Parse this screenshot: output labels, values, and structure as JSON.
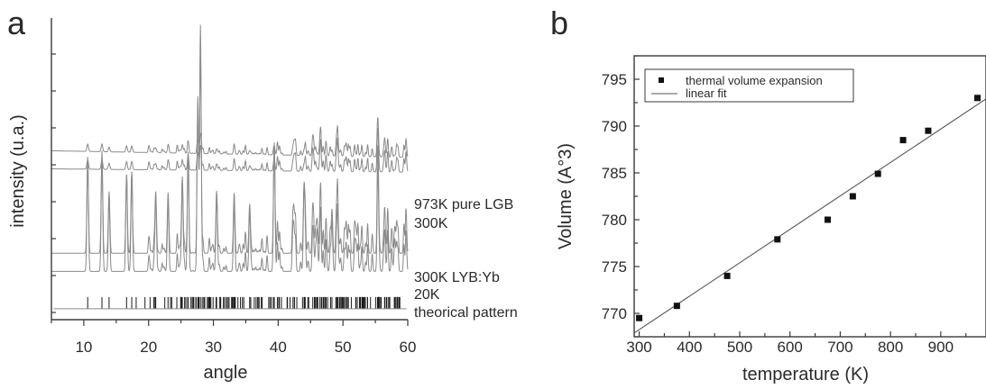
{
  "chart_data": [
    {
      "panel": "a",
      "type": "line",
      "xlabel": "angle",
      "ylabel": "intensity (u.a.)",
      "xlim": [
        5,
        60
      ],
      "xticks": [
        10,
        20,
        30,
        40,
        50,
        60
      ],
      "y_tick_labels_shown": false,
      "trace_labels": [
        {
          "name": "973K  pure LGB",
          "baseline": 0.56
        },
        {
          "name": "300K",
          "baseline": 0.5
        },
        {
          "name": "300K LYB:Yb",
          "baseline": 0.22
        },
        {
          "name": "20K",
          "baseline": 0.16
        },
        {
          "name": "theorical pattern",
          "baseline": 0.075
        }
      ],
      "major_peaks_deg": [
        {
          "x": 10.6,
          "h": 0.38
        },
        {
          "x": 12.8,
          "h": 0.4
        },
        {
          "x": 13.9,
          "h": 0.25
        },
        {
          "x": 16.6,
          "h": 0.32
        },
        {
          "x": 17.4,
          "h": 0.33
        },
        {
          "x": 21.1,
          "h": 0.25
        },
        {
          "x": 23.0,
          "h": 0.2
        },
        {
          "x": 25.2,
          "h": 0.28
        },
        {
          "x": 26.1,
          "h": 0.35
        },
        {
          "x": 27.6,
          "h": 0.55
        },
        {
          "x": 28.0,
          "h": 0.78
        },
        {
          "x": 30.5,
          "h": 0.25
        },
        {
          "x": 33.2,
          "h": 0.18
        },
        {
          "x": 35.6,
          "h": 0.2
        },
        {
          "x": 39.4,
          "h": 0.42
        },
        {
          "x": 42.3,
          "h": 0.1
        },
        {
          "x": 44.0,
          "h": 0.28
        },
        {
          "x": 46.0,
          "h": 0.14
        },
        {
          "x": 48.3,
          "h": 0.15
        },
        {
          "x": 52.0,
          "h": 0.1
        },
        {
          "x": 55.5,
          "h": 0.09
        },
        {
          "x": 58.0,
          "h": 0.11
        }
      ]
    },
    {
      "panel": "b",
      "type": "scatter",
      "xlabel": "temperature (K)",
      "ylabel": "Volume (A°3)",
      "xlim": [
        290,
        990
      ],
      "ylim": [
        767.5,
        797.5
      ],
      "xticks": [
        300,
        400,
        500,
        600,
        700,
        800,
        900
      ],
      "yticks": [
        770,
        775,
        780,
        785,
        790,
        795
      ],
      "legend_position": "top-left",
      "series": [
        {
          "name": "thermal volume expansion",
          "x": [
            300,
            375,
            475,
            575,
            675,
            725,
            775,
            825,
            875,
            973
          ],
          "y": [
            769.5,
            770.8,
            774.0,
            777.9,
            780.0,
            782.5,
            784.9,
            788.5,
            789.5,
            793.0
          ]
        },
        {
          "name": "linear fit",
          "x": [
            290,
            990
          ],
          "y": [
            767.9,
            792.9
          ]
        }
      ]
    }
  ],
  "colors": {
    "axis": "#3a3a3a",
    "trace": "#8a8a8a",
    "bars": "#1a1a1a",
    "markers": "#111111",
    "fit": "#555555"
  }
}
